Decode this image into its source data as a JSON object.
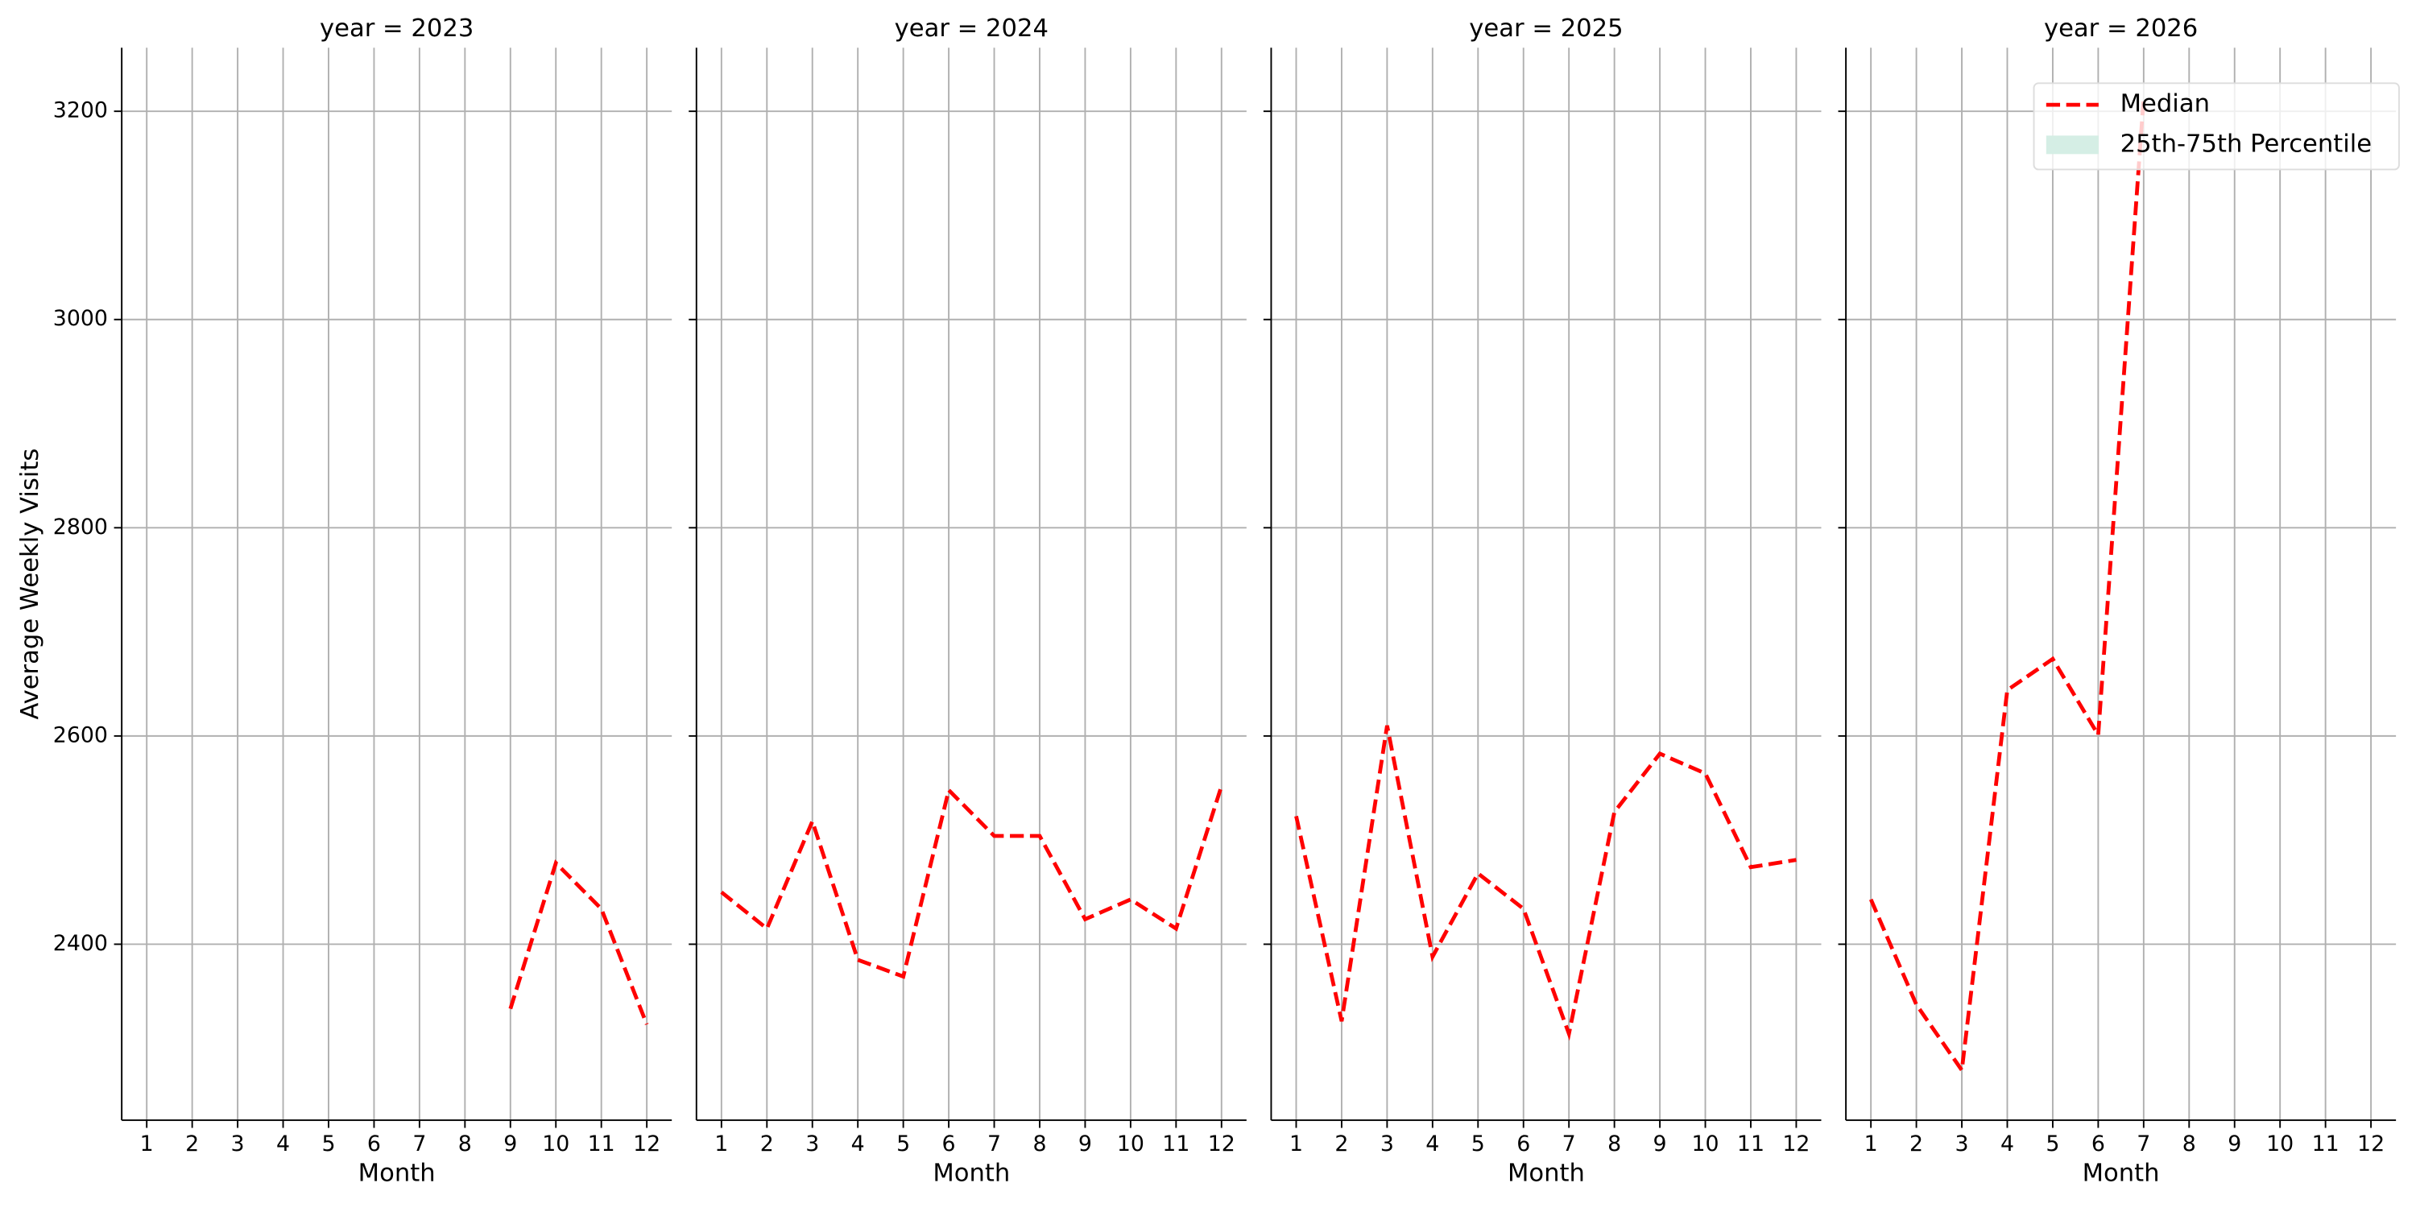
{
  "chart_data": {
    "type": "line",
    "y_label": "Average Weekly Visits",
    "x_label": "Month",
    "ylim": [
      2231,
      3261
    ],
    "yticks": [
      2400,
      2600,
      2800,
      3000,
      3200
    ],
    "xlim": [
      0.45,
      12.55
    ],
    "xticks": [
      1,
      2,
      3,
      4,
      5,
      6,
      7,
      8,
      9,
      10,
      11,
      12
    ],
    "grid": true,
    "legend_position": "upper right",
    "legend": [
      {
        "name": "Median",
        "color": "#ff0000",
        "style": "dashed"
      },
      {
        "name": "25th-75th Percentile",
        "color": "#d5eee5",
        "style": "patch"
      }
    ],
    "panels": [
      {
        "title": "year = 2023",
        "x": [
          9,
          10,
          11,
          12
        ],
        "values": [
          2338,
          2478,
          2434,
          2323
        ]
      },
      {
        "title": "year = 2024",
        "x": [
          1,
          2,
          3,
          4,
          5,
          6,
          7,
          8,
          9,
          10,
          11,
          12
        ],
        "values": [
          2450,
          2415,
          2518,
          2385,
          2369,
          2548,
          2504,
          2504,
          2424,
          2443,
          2415,
          2552
        ]
      },
      {
        "title": "year = 2025",
        "x": [
          1,
          2,
          3,
          4,
          5,
          6,
          7,
          8,
          9,
          10,
          11,
          12
        ],
        "values": [
          2523,
          2326,
          2610,
          2388,
          2468,
          2434,
          2314,
          2527,
          2583,
          2564,
          2474,
          2481
        ]
      },
      {
        "title": "year = 2026",
        "x": [
          1,
          2,
          3,
          4,
          5,
          6,
          7
        ],
        "values": [
          2443,
          2342,
          2279,
          2644,
          2674,
          2601,
          3213
        ]
      }
    ]
  }
}
